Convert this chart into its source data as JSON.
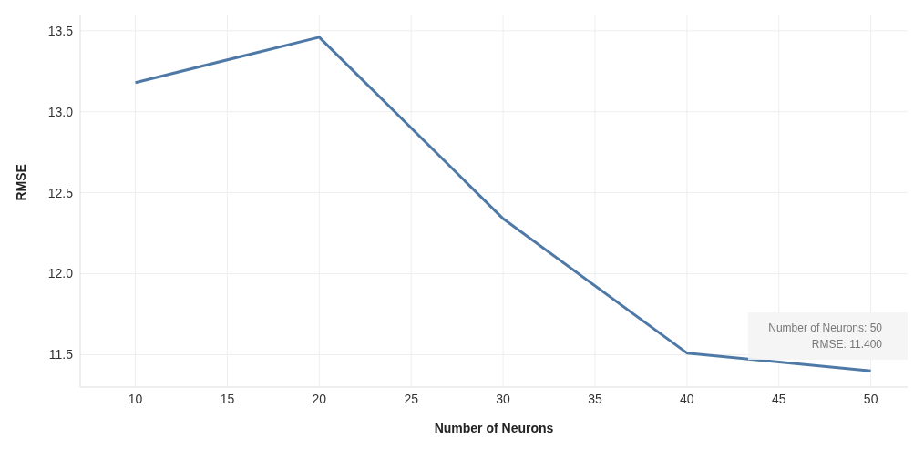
{
  "chart_data": {
    "type": "line",
    "xlabel": "Number of Neurons",
    "ylabel": "RMSE",
    "x": [
      10,
      20,
      30,
      40,
      50
    ],
    "series": [
      {
        "color": "#4e79a7",
        "values": [
          13.18,
          13.46,
          12.34,
          11.51,
          11.4
        ]
      }
    ],
    "xlim": [
      7,
      52
    ],
    "xticks": [
      10,
      15,
      20,
      25,
      30,
      35,
      40,
      45,
      50
    ],
    "ylim": [
      11.3,
      13.6
    ],
    "yticks": [
      11.5,
      {
        "value": 12,
        "label": "12.0"
      },
      12.5,
      {
        "value": 13,
        "label": "13.0"
      },
      13.5
    ],
    "grid": true,
    "marker": "none",
    "line_style": "solid",
    "annotations": [
      "Number of Neurons: 50",
      "RMSE: 11.400"
    ]
  }
}
